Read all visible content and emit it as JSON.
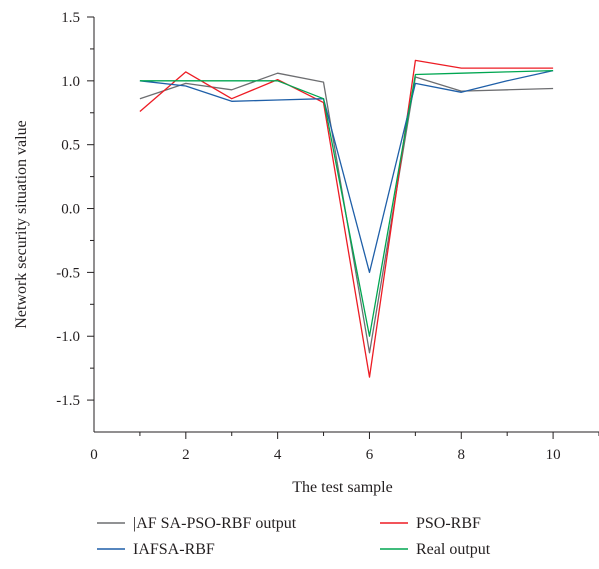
{
  "chart_data": {
    "type": "line",
    "xlabel": "The test sample",
    "ylabel": "Network security situation value",
    "xlim": [
      0,
      11
    ],
    "ylim": [
      -1.75,
      1.5
    ],
    "xticks": [
      0,
      2,
      4,
      6,
      8,
      10
    ],
    "yticks": [
      1.5,
      1.0,
      0.5,
      0.0,
      -0.5,
      -1.0,
      -1.5
    ],
    "ytick_labels": [
      "1.5",
      "1.0",
      "0.5",
      "0.0",
      "-0.5",
      "-1.0",
      "-1.5"
    ],
    "grid": false,
    "legend_position": "bottom",
    "series": [
      {
        "name": "|AF SA-PSO-RBF output",
        "color": "#6d6e71",
        "x": [
          1,
          2,
          3,
          4,
          5,
          6,
          7,
          8,
          9,
          10
        ],
        "y": [
          0.86,
          0.98,
          0.93,
          1.06,
          0.99,
          -1.13,
          1.03,
          0.92,
          0.93,
          0.94
        ]
      },
      {
        "name": "PSO-RBF",
        "color": "#ed1c24",
        "x": [
          1,
          2,
          3,
          4,
          5,
          6,
          7,
          8,
          9,
          10
        ],
        "y": [
          0.76,
          1.07,
          0.86,
          1.01,
          0.83,
          -1.32,
          1.16,
          1.1,
          1.1,
          1.1
        ]
      },
      {
        "name": "IAFSA-RBF",
        "color": "#1f5fa8",
        "x": [
          1,
          2,
          3,
          4,
          5,
          6,
          7,
          8,
          9,
          10
        ],
        "y": [
          1.0,
          0.96,
          0.84,
          0.85,
          0.86,
          -0.5,
          0.98,
          0.91,
          1.0,
          1.08
        ]
      },
      {
        "name": "Real output",
        "color": "#00a651",
        "x": [
          1,
          2,
          3,
          4,
          5,
          6,
          7,
          8,
          9,
          10
        ],
        "y": [
          1.0,
          1.0,
          1.0,
          1.0,
          0.86,
          -1.0,
          1.05,
          1.06,
          1.07,
          1.08
        ]
      }
    ]
  }
}
